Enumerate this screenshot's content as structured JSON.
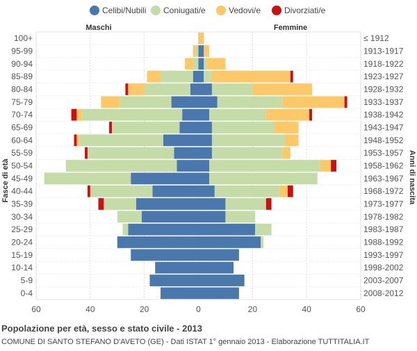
{
  "chart_data": {
    "type": "bar",
    "orientation": "population-pyramid",
    "title": "Popolazione per età, sesso e stato civile - 2013",
    "subtitle": "COMUNE DI SANTO STEFANO D'AVETO (GE) - Dati ISTAT 1° gennaio 2013 - Elaborazione TUTTITALIA.IT",
    "left_label": "Maschi",
    "right_label": "Femmine",
    "ylabel_left": "Fasce di età",
    "ylabel_right": "Anni di nascita",
    "xlim": [
      -60,
      60
    ],
    "x_ticks": [
      "60",
      "40",
      "20",
      "0",
      "20",
      "40",
      "60"
    ],
    "legend": [
      {
        "name": "Celibi/Nubili",
        "color": "#4a78ad"
      },
      {
        "name": "Coniugati/e",
        "color": "#c5dba8"
      },
      {
        "name": "Vedovi/e",
        "color": "#fdc968"
      },
      {
        "name": "Divorziati/e",
        "color": "#cc1010"
      }
    ],
    "age_groups": [
      "100+",
      "95-99",
      "90-94",
      "85-89",
      "80-84",
      "75-79",
      "70-74",
      "65-69",
      "60-64",
      "55-59",
      "50-54",
      "45-49",
      "40-44",
      "35-39",
      "30-34",
      "25-29",
      "20-24",
      "15-19",
      "10-14",
      "5-9",
      "0-4"
    ],
    "birth_years": [
      "≤ 1912",
      "1913-1917",
      "1918-1922",
      "1923-1927",
      "1928-1932",
      "1933-1937",
      "1938-1942",
      "1943-1947",
      "1948-1952",
      "1953-1957",
      "1958-1962",
      "1963-1967",
      "1968-1972",
      "1973-1977",
      "1978-1982",
      "1983-1987",
      "1988-1992",
      "1993-1997",
      "1998-2002",
      "2003-2007",
      "2008-2012"
    ],
    "males": {
      "celibi": [
        0,
        0,
        0,
        2,
        3,
        10,
        6,
        7,
        13,
        9,
        8,
        25,
        17,
        23,
        21,
        26,
        30,
        25,
        16,
        18,
        14
      ],
      "coniugati": [
        0,
        1,
        2,
        12,
        17,
        19,
        37,
        25,
        31,
        32,
        41,
        32,
        23,
        12,
        9,
        2,
        0,
        0,
        0,
        0,
        0
      ],
      "vedovi": [
        0,
        1,
        3,
        5,
        6,
        7,
        2,
        0,
        1,
        0,
        0,
        0,
        0,
        0,
        0,
        0,
        0,
        0,
        0,
        0,
        0
      ],
      "divorziati": [
        0,
        0,
        0,
        0,
        1,
        0,
        2,
        1,
        1,
        1,
        0,
        0,
        1,
        2,
        0,
        0,
        0,
        0,
        0,
        0,
        0
      ]
    },
    "females": {
      "nubili": [
        0,
        2,
        2,
        2,
        5,
        7,
        4,
        5,
        5,
        5,
        4,
        4,
        6,
        10,
        10,
        21,
        23,
        15,
        13,
        17,
        15
      ],
      "coniugate": [
        0,
        0,
        1,
        3,
        15,
        24,
        21,
        23,
        27,
        26,
        41,
        40,
        24,
        15,
        11,
        6,
        1,
        0,
        0,
        0,
        0
      ],
      "vedove": [
        2,
        2,
        7,
        29,
        22,
        23,
        16,
        9,
        5,
        3,
        4,
        0,
        3,
        0,
        0,
        0,
        0,
        0,
        0,
        0,
        0
      ],
      "divorziate": [
        0,
        0,
        0,
        1,
        0,
        1,
        1,
        0,
        0,
        0,
        2,
        0,
        2,
        2,
        0,
        0,
        0,
        0,
        0,
        0,
        0
      ]
    }
  }
}
